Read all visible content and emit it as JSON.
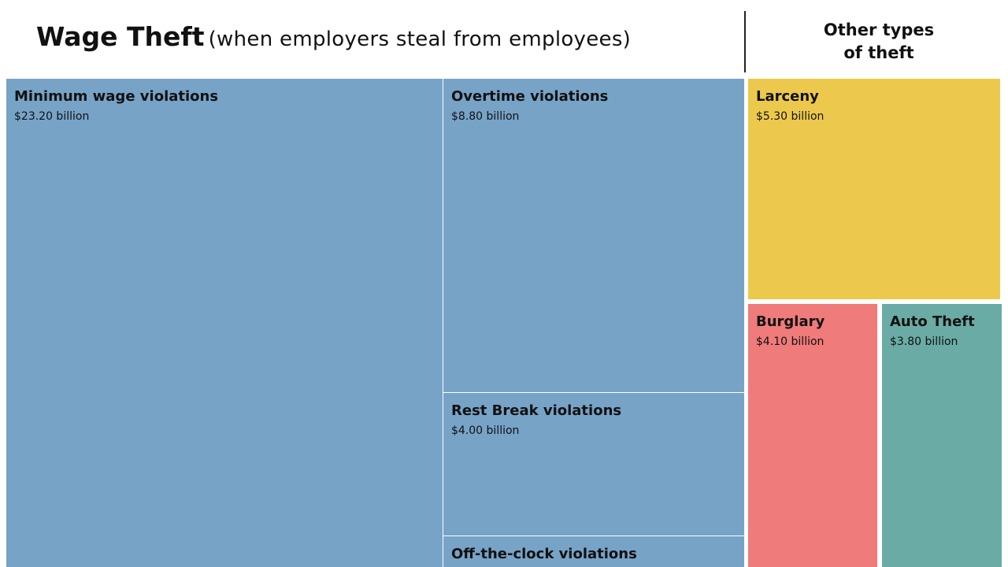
{
  "chart_data": {
    "type": "treemap",
    "title": "Wage Theft",
    "subtitle": "(when employers steal from employees)",
    "groups": [
      {
        "name": "",
        "color": "#77a3c7",
        "items": [
          {
            "label": "Minimum wage violations",
            "value": 23.2,
            "value_text": "$23.20 billion"
          },
          {
            "label": "Overtime violations",
            "value": 8.8,
            "value_text": "$8.80 billion"
          },
          {
            "label": "Rest Break violations",
            "value": 4.0,
            "value_text": "$4.00 billion"
          },
          {
            "label": "Off-the-clock violations",
            "value": null,
            "value_text": ""
          }
        ]
      },
      {
        "name": "Other types\nof theft",
        "items": [
          {
            "label": "Larceny",
            "value": 5.3,
            "value_text": "$5.30 billion",
            "color": "#ecc94c"
          },
          {
            "label": "Burglary",
            "value": 4.1,
            "value_text": "$4.10 billion",
            "color": "#ef7b7a"
          },
          {
            "label": "Auto Theft",
            "value": 3.8,
            "value_text": "$3.80 billion",
            "color": "#6aaba5"
          }
        ]
      }
    ],
    "unit": "billion"
  }
}
